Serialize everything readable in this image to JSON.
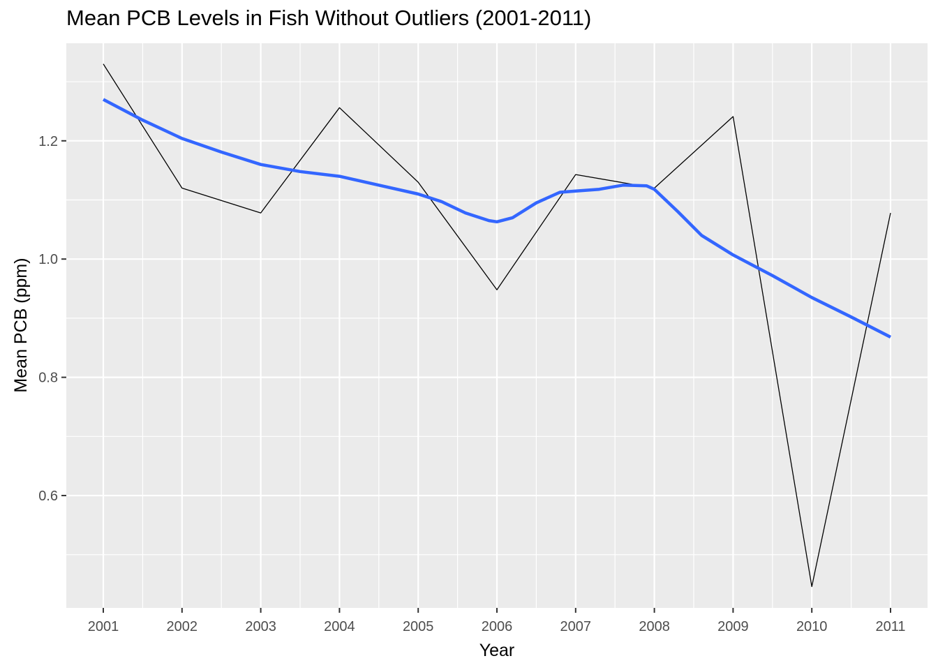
{
  "chart_data": {
    "type": "line",
    "title": "Mean PCB Levels in Fish Without Outliers (2001-2011)",
    "xlabel": "Year",
    "ylabel": "Mean PCB (ppm)",
    "categories": [
      "2001",
      "2002",
      "2003",
      "2004",
      "2005",
      "2006",
      "2007",
      "2008",
      "2009",
      "2010",
      "2011"
    ],
    "x": [
      2001,
      2002,
      2003,
      2004,
      2005,
      2006,
      2007,
      2008,
      2009,
      2010,
      2011
    ],
    "y_ticks": [
      "0.6",
      "0.8",
      "1.0",
      "1.2"
    ],
    "y_tick_values": [
      0.6,
      0.8,
      1.0,
      1.2
    ],
    "xlim": [
      2000.53,
      2011.47
    ],
    "ylim": [
      0.41,
      1.365
    ],
    "grid": true,
    "series": [
      {
        "kind": "observed",
        "color": "#000000",
        "values": [
          1.33,
          1.12,
          1.078,
          1.256,
          1.13,
          0.948,
          1.143,
          1.12,
          1.241,
          0.446,
          1.078
        ]
      },
      {
        "kind": "smooth",
        "color": "#3366FF",
        "x": [
          2001,
          2001.5,
          2002,
          2002.5,
          2003,
          2003.5,
          2004,
          2004.5,
          2005,
          2005.3,
          2005.6,
          2005.9,
          2006,
          2006.2,
          2006.5,
          2006.8,
          2007,
          2007.3,
          2007.6,
          2007.9,
          2008,
          2008.3,
          2008.6,
          2009,
          2009.5,
          2010,
          2010.5,
          2011
        ],
        "values": [
          1.27,
          1.235,
          1.204,
          1.181,
          1.16,
          1.148,
          1.14,
          1.125,
          1.11,
          1.097,
          1.078,
          1.065,
          1.063,
          1.07,
          1.095,
          1.113,
          1.115,
          1.118,
          1.125,
          1.124,
          1.118,
          1.08,
          1.04,
          1.007,
          0.972,
          0.935,
          0.902,
          0.868
        ]
      }
    ],
    "colors": {
      "panel_background": "#EBEBEB",
      "grid": "#FFFFFF",
      "observed_line": "#000000",
      "smooth_line": "#3366FF"
    }
  }
}
